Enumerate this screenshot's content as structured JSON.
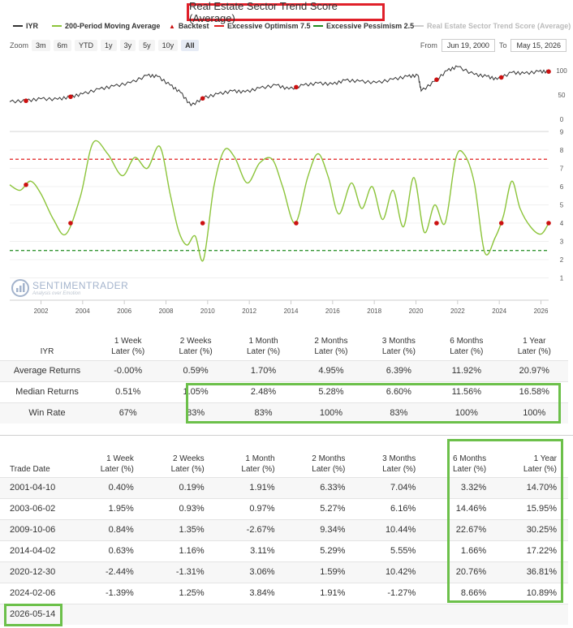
{
  "title": "Real Estate Sector Trend Score (Average)",
  "legend": {
    "iyr": "IYR",
    "ma": "200-Period Moving Average",
    "backtest": "Backtest",
    "optimism": "Excessive Optimism 7.5",
    "pessimism": "Excessive Pessimism 2.5",
    "raw": "Real Estate Sector Trend Score (Average)"
  },
  "zoom": {
    "label": "Zoom",
    "buttons": [
      "3m",
      "6m",
      "YTD",
      "1y",
      "3y",
      "5y",
      "10y",
      "All"
    ]
  },
  "range": {
    "from_label": "From",
    "from_value": "Jun 19, 2000",
    "to_label": "To",
    "to_value": "May 15, 2026"
  },
  "watermark": {
    "name": "SENTIMENTRADER",
    "tagline": "Analysis over Emotion"
  },
  "colors": {
    "price": "#333333",
    "score": "#8cc43a",
    "optimism": "#e02020",
    "pessimism": "#1f8a1f",
    "signal": "#cc1111",
    "highlight": "#6cc04a",
    "title_border": "#e0202a"
  },
  "chart_data": [
    {
      "type": "line",
      "panel": "top",
      "series": [
        {
          "name": "IYR",
          "x": [
            2000.5,
            2001.3,
            2002.0,
            2002.8,
            2003.4,
            2004.0,
            2004.8,
            2005.5,
            2006.3,
            2007.1,
            2007.6,
            2008.2,
            2008.7,
            2009.2,
            2009.8,
            2010.5,
            2011.2,
            2011.8,
            2012.5,
            2013.3,
            2013.9,
            2014.6,
            2015.3,
            2016.0,
            2016.6,
            2017.3,
            2018.1,
            2018.9,
            2019.6,
            2020.1,
            2020.25,
            2020.9,
            2021.5,
            2022.0,
            2022.8,
            2023.4,
            2023.9,
            2024.6,
            2025.2,
            2025.9,
            2026.37
          ],
          "values": [
            36,
            38,
            42,
            41,
            46,
            52,
            62,
            68,
            75,
            90,
            88,
            70,
            55,
            28,
            44,
            52,
            58,
            56,
            64,
            70,
            62,
            70,
            74,
            72,
            80,
            78,
            75,
            82,
            88,
            90,
            58,
            78,
            100,
            108,
            92,
            88,
            82,
            96,
            94,
            98,
            98
          ]
        }
      ],
      "yticks": [
        0,
        50,
        100
      ]
    },
    {
      "type": "line",
      "panel": "bottom",
      "series": [
        {
          "name": "200-Period Moving Average",
          "x": [
            2000.5,
            2001.0,
            2001.5,
            2002.0,
            2002.6,
            2003.2,
            2003.9,
            2004.5,
            2005.2,
            2005.9,
            2006.5,
            2007.1,
            2007.7,
            2008.2,
            2008.6,
            2009.0,
            2009.4,
            2009.8,
            2010.3,
            2010.8,
            2011.3,
            2011.9,
            2012.5,
            2013.1,
            2013.6,
            2014.2,
            2014.8,
            2015.3,
            2015.8,
            2016.3,
            2016.9,
            2017.4,
            2017.9,
            2018.4,
            2018.9,
            2019.4,
            2019.9,
            2020.4,
            2020.9,
            2021.4,
            2021.9,
            2022.3,
            2022.8,
            2023.3,
            2023.8,
            2024.2,
            2024.6,
            2025.0,
            2025.5,
            2026.0,
            2026.37
          ],
          "values": [
            6.1,
            5.8,
            6.3,
            5.6,
            4.2,
            3.4,
            5.5,
            8.4,
            7.8,
            6.6,
            7.6,
            7.0,
            8.2,
            5.6,
            3.6,
            2.8,
            3.3,
            2.0,
            6.0,
            8.0,
            7.6,
            6.2,
            7.3,
            7.5,
            6.0,
            4.0,
            6.5,
            7.8,
            6.5,
            4.5,
            6.2,
            4.8,
            6.0,
            4.2,
            5.8,
            3.8,
            6.5,
            3.5,
            5.0,
            4.0,
            7.5,
            7.8,
            6.2,
            2.4,
            3.2,
            4.4,
            6.3,
            4.8,
            3.8,
            3.4,
            4.0
          ]
        }
      ],
      "backtest_signals": {
        "x": [
          2001.28,
          2003.42,
          2009.76,
          2014.25,
          2020.99,
          2024.1,
          2026.37
        ],
        "values": [
          6.1,
          4.0,
          4.0,
          4.0,
          4.0,
          4.0,
          4.0
        ]
      },
      "reference_lines": [
        {
          "name": "Excessive Optimism 7.5",
          "value": 7.5
        },
        {
          "name": "Excessive Pessimism 2.5",
          "value": 2.5
        }
      ],
      "yticks": [
        1,
        2,
        3,
        4,
        5,
        6,
        7,
        8,
        9
      ],
      "xticks": [
        2002,
        2004,
        2006,
        2008,
        2010,
        2012,
        2014,
        2016,
        2018,
        2020,
        2022,
        2024,
        2026
      ]
    }
  ],
  "summary": {
    "ticker": "IYR",
    "columns": [
      [
        "1 Week",
        "Later (%)"
      ],
      [
        "2 Weeks",
        "Later (%)"
      ],
      [
        "1 Month",
        "Later (%)"
      ],
      [
        "2 Months",
        "Later (%)"
      ],
      [
        "3 Months",
        "Later (%)"
      ],
      [
        "6 Months",
        "Later (%)"
      ],
      [
        "1 Year",
        "Later (%)"
      ]
    ],
    "rows": [
      {
        "label": "Average Returns",
        "values": [
          "-0.00%",
          "0.59%",
          "1.70%",
          "4.95%",
          "6.39%",
          "11.92%",
          "20.97%"
        ]
      },
      {
        "label": "Median Returns",
        "values": [
          "0.51%",
          "1.05%",
          "2.48%",
          "5.28%",
          "6.60%",
          "11.56%",
          "16.58%"
        ]
      },
      {
        "label": "Win Rate",
        "values": [
          "67%",
          "83%",
          "83%",
          "100%",
          "83%",
          "100%",
          "100%"
        ]
      }
    ]
  },
  "trades": {
    "date_header": "Trade Date",
    "columns": [
      [
        "1 Week",
        "Later (%)"
      ],
      [
        "2 Weeks",
        "Later (%)"
      ],
      [
        "1 Month",
        "Later (%)"
      ],
      [
        "2 Months",
        "Later (%)"
      ],
      [
        "3 Months",
        "Later (%)"
      ],
      [
        "6 Months",
        "Later (%)"
      ],
      [
        "1 Year",
        "Later (%)"
      ]
    ],
    "rows": [
      {
        "date": "2001-04-10",
        "values": [
          "0.40%",
          "0.19%",
          "1.91%",
          "6.33%",
          "7.04%",
          "3.32%",
          "14.70%"
        ]
      },
      {
        "date": "2003-06-02",
        "values": [
          "1.95%",
          "0.93%",
          "0.97%",
          "5.27%",
          "6.16%",
          "14.46%",
          "15.95%"
        ]
      },
      {
        "date": "2009-10-06",
        "values": [
          "0.84%",
          "1.35%",
          "-2.67%",
          "9.34%",
          "10.44%",
          "22.67%",
          "30.25%"
        ]
      },
      {
        "date": "2014-04-02",
        "values": [
          "0.63%",
          "1.16%",
          "3.11%",
          "5.29%",
          "5.55%",
          "1.66%",
          "17.22%"
        ]
      },
      {
        "date": "2020-12-30",
        "values": [
          "-2.44%",
          "-1.31%",
          "3.06%",
          "1.59%",
          "10.42%",
          "20.76%",
          "36.81%"
        ]
      },
      {
        "date": "2024-02-06",
        "values": [
          "-1.39%",
          "1.25%",
          "3.84%",
          "1.91%",
          "-1.27%",
          "8.66%",
          "10.89%"
        ]
      },
      {
        "date": "2026-05-14",
        "values": [
          "",
          "",
          "",
          "",
          "",
          "",
          ""
        ]
      }
    ]
  }
}
